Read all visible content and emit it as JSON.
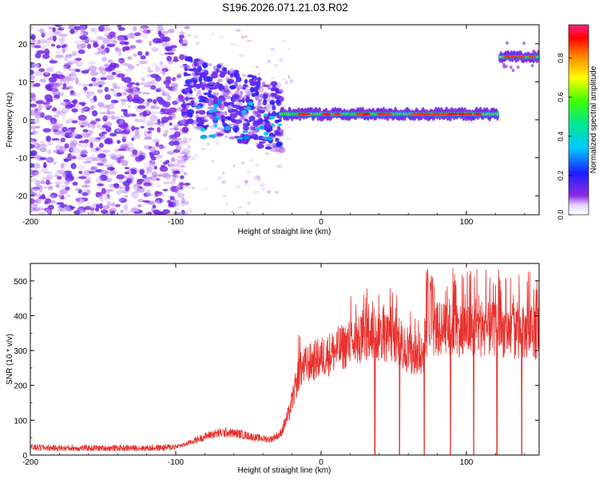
{
  "title": "S196.2026.071.21.03.R02",
  "chart_data": [
    {
      "type": "heatmap",
      "title": "S196.2026.071.21.03.R02",
      "xlabel": "Height of straight line (km)",
      "ylabel": "Frequency (Hz)",
      "xlim": [
        -200,
        150
      ],
      "ylim": [
        -25,
        25
      ],
      "xticks": [
        -200,
        -100,
        0,
        100
      ],
      "yticks": [
        -20,
        -10,
        0,
        10,
        20
      ],
      "colorbar": {
        "label": "Normalized spectral amplitude",
        "range": [
          0,
          0.97
        ],
        "ticks": [
          0.0,
          0.2,
          0.4,
          0.6,
          0.8
        ],
        "colormap": "rainbow (white/violet → blue → cyan → green → yellow → red → magenta)"
      },
      "features": [
        {
          "name": "diffuse noise speckle",
          "x_range": [
            -200,
            -95
          ],
          "freq_range": [
            -25,
            25
          ],
          "amplitude": [
            0.02,
            0.15
          ]
        },
        {
          "name": "transition cluster",
          "x_range": [
            -95,
            -25
          ],
          "freq_range": [
            -8,
            14
          ],
          "amplitude": [
            0.05,
            0.3
          ]
        },
        {
          "name": "narrow band line",
          "x_range": [
            -28,
            122
          ],
          "freq_center": 1.5,
          "amplitude": [
            0.3,
            0.95
          ]
        },
        {
          "name": "upper band line",
          "x_range": [
            122,
            150
          ],
          "freq_center": 16.5,
          "amplitude": [
            0.3,
            0.95
          ]
        }
      ]
    },
    {
      "type": "line",
      "xlabel": "Height of straight line (km)",
      "ylabel": "SNR (10 * v/v)",
      "xlim": [
        -200,
        150
      ],
      "ylim": [
        0,
        550
      ],
      "xticks": [
        -200,
        -100,
        0,
        100
      ],
      "yticks": [
        0,
        100,
        200,
        300,
        400,
        500
      ],
      "series": [
        {
          "name": "SNR",
          "color": "#e8302c",
          "x": [
            -200,
            -180,
            -160,
            -140,
            -120,
            -105,
            -95,
            -85,
            -75,
            -65,
            -55,
            -45,
            -35,
            -28,
            -22,
            -18,
            -15,
            -10,
            -5,
            0,
            5,
            10,
            20,
            30,
            40,
            50,
            55,
            60,
            65,
            70,
            72,
            80,
            90,
            100,
            110,
            120,
            130,
            140,
            150
          ],
          "values": [
            22,
            20,
            20,
            20,
            20,
            22,
            28,
            45,
            60,
            65,
            60,
            50,
            45,
            60,
            120,
            190,
            240,
            260,
            270,
            280,
            290,
            300,
            320,
            330,
            340,
            335,
            320,
            290,
            275,
            280,
            355,
            360,
            360,
            360,
            360,
            360,
            355,
            350,
            350
          ]
        }
      ],
      "spikes_down_x": [
        37,
        54,
        71,
        89,
        105,
        121,
        138
      ],
      "spike_peak_max": 540
    }
  ]
}
